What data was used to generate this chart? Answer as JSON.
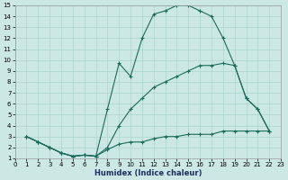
{
  "xlabel": "Humidex (Indice chaleur)",
  "background_color": "#cce8e4",
  "grid_color": "#aad4cc",
  "line_color": "#1a6b5a",
  "xlim": [
    0,
    23
  ],
  "ylim": [
    1,
    15
  ],
  "xticks": [
    0,
    1,
    2,
    3,
    4,
    5,
    6,
    7,
    8,
    9,
    10,
    11,
    12,
    13,
    14,
    15,
    16,
    17,
    18,
    19,
    20,
    21,
    22,
    23
  ],
  "yticks": [
    1,
    2,
    3,
    4,
    5,
    6,
    7,
    8,
    9,
    10,
    11,
    12,
    13,
    14,
    15
  ],
  "curve_top_x": [
    1,
    2,
    3,
    4,
    5,
    6,
    7,
    8,
    9,
    10,
    11,
    12,
    13,
    14,
    15,
    16,
    17,
    18,
    19,
    20,
    21,
    22
  ],
  "curve_top_y": [
    3.0,
    2.5,
    2.0,
    1.5,
    1.2,
    1.3,
    1.2,
    5.5,
    9.7,
    8.5,
    12.0,
    14.2,
    14.5,
    15.0,
    15.0,
    14.5,
    14.0,
    12.0,
    9.5,
    6.5,
    5.5,
    3.5
  ],
  "curve_mid_x": [
    1,
    2,
    3,
    4,
    5,
    6,
    7,
    8,
    9,
    10,
    11,
    12,
    13,
    14,
    15,
    16,
    17,
    18,
    19,
    20,
    21,
    22
  ],
  "curve_mid_y": [
    3.0,
    2.5,
    2.0,
    1.5,
    1.2,
    1.3,
    1.2,
    2.0,
    4.0,
    5.5,
    6.5,
    7.5,
    8.0,
    8.5,
    9.0,
    9.5,
    9.5,
    9.7,
    9.5,
    6.5,
    5.5,
    3.5
  ],
  "curve_bot_x": [
    1,
    2,
    3,
    4,
    5,
    6,
    7,
    8,
    9,
    10,
    11,
    12,
    13,
    14,
    15,
    16,
    17,
    18,
    19,
    20,
    21,
    22
  ],
  "curve_bot_y": [
    3.0,
    2.5,
    2.0,
    1.5,
    1.2,
    1.3,
    1.2,
    1.8,
    2.3,
    2.5,
    2.5,
    2.8,
    3.0,
    3.0,
    3.2,
    3.2,
    3.2,
    3.5,
    3.5,
    3.5,
    3.5,
    3.5
  ],
  "xlabel_fontsize": 6,
  "tick_fontsize": 5
}
